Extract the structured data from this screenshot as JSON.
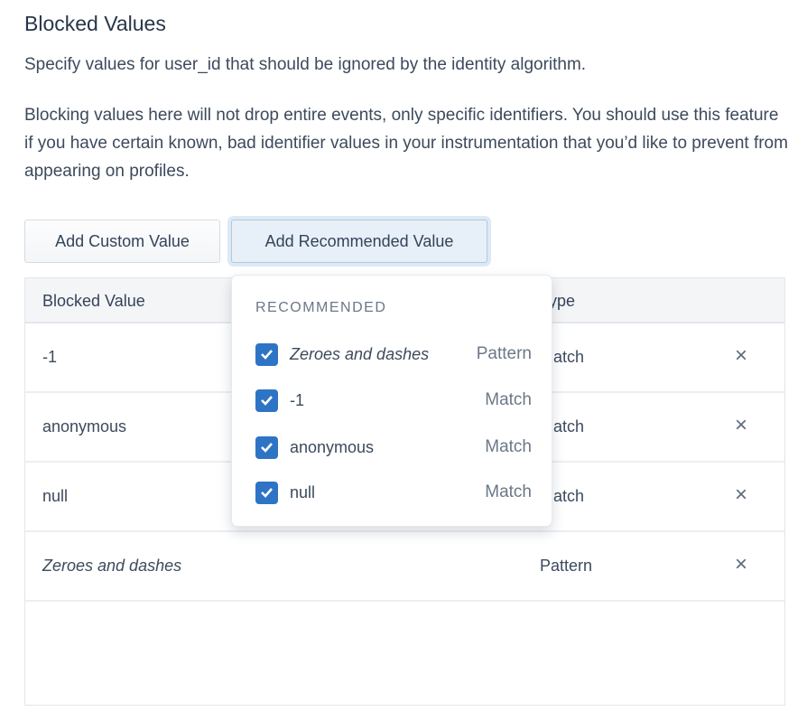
{
  "title": "Blocked Values",
  "description": "Specify values for user_id that should be ignored by the identity algorithm.",
  "note": "Blocking values here will not drop entire events, only specific identifiers. You should use this feature if you have certain known, bad identifier values in your instrumentation that you’d like to prevent from appearing on profiles.",
  "buttons": {
    "custom": "Add Custom Value",
    "recommended": "Add Recommended Value"
  },
  "table": {
    "headers": [
      "Blocked Value",
      "Type"
    ],
    "rows": [
      {
        "value": "-1",
        "type": "Match"
      },
      {
        "value": "anonymous",
        "type": "Match"
      },
      {
        "value": "null",
        "type": "Match"
      },
      {
        "value": "Zeroes and dashes",
        "type": "Pattern"
      }
    ],
    "remove_icon": "×"
  },
  "dropdown": {
    "header": "RECOMMENDED",
    "options": [
      {
        "label": "Zeroes and dashes",
        "type": "Pattern",
        "checked": true
      },
      {
        "label": "-1",
        "type": "Match",
        "checked": true
      },
      {
        "label": "anonymous",
        "type": "Match",
        "checked": true
      },
      {
        "label": "null",
        "type": "Match",
        "checked": true
      }
    ]
  },
  "colors": {
    "accent": "#2e74c5"
  }
}
